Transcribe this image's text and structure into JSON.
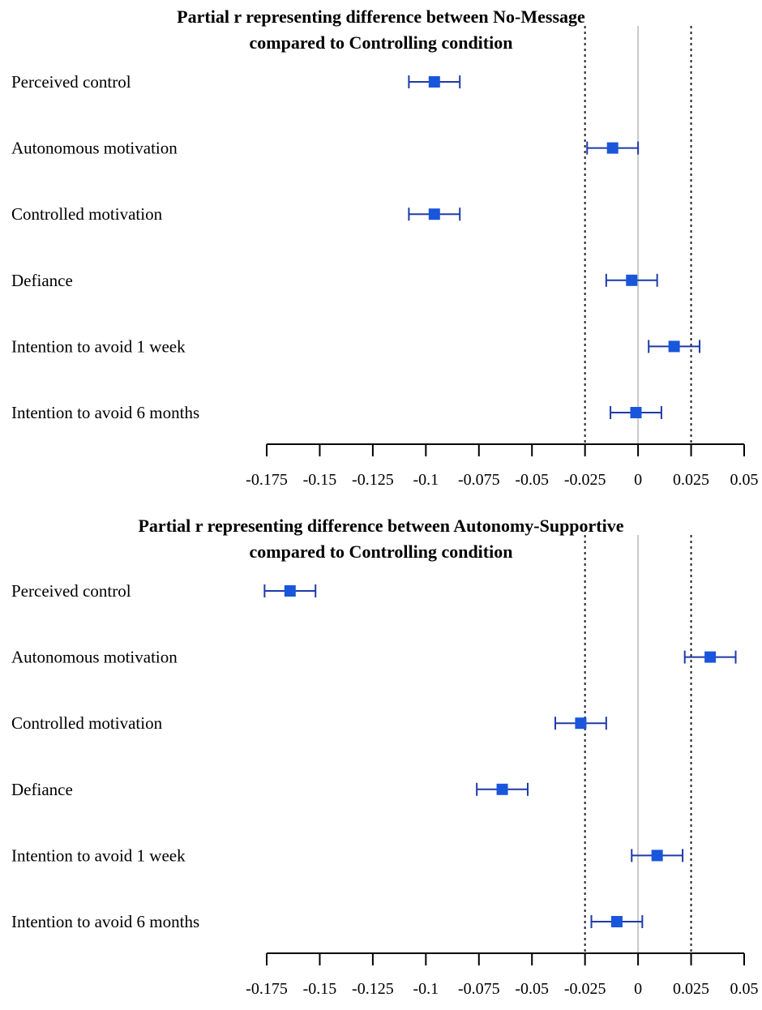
{
  "chart_data": [
    {
      "type": "forest",
      "title_lines": [
        "Partial r representing difference between No-Message",
        "compared to Controlling condition"
      ],
      "categories": [
        "Perceived control",
        "Autonomous motivation",
        "Controlled motivation",
        "Defiance",
        "Intention to avoid 1 week",
        "Intention to avoid 6 months"
      ],
      "estimates": [
        -0.096,
        -0.012,
        -0.096,
        -0.003,
        0.017,
        -0.001
      ],
      "ci_lower": [
        -0.108,
        -0.024,
        -0.108,
        -0.015,
        0.005,
        -0.013
      ],
      "ci_upper": [
        -0.084,
        0.0,
        -0.084,
        0.009,
        0.029,
        0.011
      ],
      "reference_lines": [
        -0.025,
        0.025
      ],
      "zero_line": 0,
      "xlim": [
        -0.175,
        0.05
      ],
      "xticks": [
        -0.175,
        -0.15,
        -0.125,
        -0.1,
        -0.075,
        -0.05,
        -0.025,
        0,
        0.025,
        0.05
      ],
      "xtick_labels": [
        "-0.175",
        "-0.15",
        "-0.125",
        "-0.1",
        "-0.075",
        "-0.05",
        "-0.025",
        "0",
        "0.025",
        "0.05"
      ],
      "point_color": "#1a56db",
      "ci_color": "#1f3aa8"
    },
    {
      "type": "forest",
      "title_lines": [
        "Partial r representing difference between Autonomy-Supportive",
        "compared to Controlling condition"
      ],
      "categories": [
        "Perceived control",
        "Autonomous motivation",
        "Controlled motivation",
        "Defiance",
        "Intention to avoid 1 week",
        "Intention to avoid 6 months"
      ],
      "estimates": [
        -0.164,
        0.034,
        -0.027,
        -0.064,
        0.009,
        -0.01
      ],
      "ci_lower": [
        -0.176,
        0.022,
        -0.039,
        -0.076,
        -0.003,
        -0.022
      ],
      "ci_upper": [
        -0.152,
        0.046,
        -0.015,
        -0.052,
        0.021,
        0.002
      ],
      "reference_lines": [
        -0.025,
        0.025
      ],
      "zero_line": 0,
      "xlim": [
        -0.175,
        0.05
      ],
      "xticks": [
        -0.175,
        -0.15,
        -0.125,
        -0.1,
        -0.075,
        -0.05,
        -0.025,
        0,
        0.025,
        0.05
      ],
      "xtick_labels": [
        "-0.175",
        "-0.15",
        "-0.125",
        "-0.1",
        "-0.075",
        "-0.05",
        "-0.025",
        "0",
        "0.025",
        "0.05"
      ],
      "point_color": "#1a56db",
      "ci_color": "#1f3aa8"
    }
  ]
}
